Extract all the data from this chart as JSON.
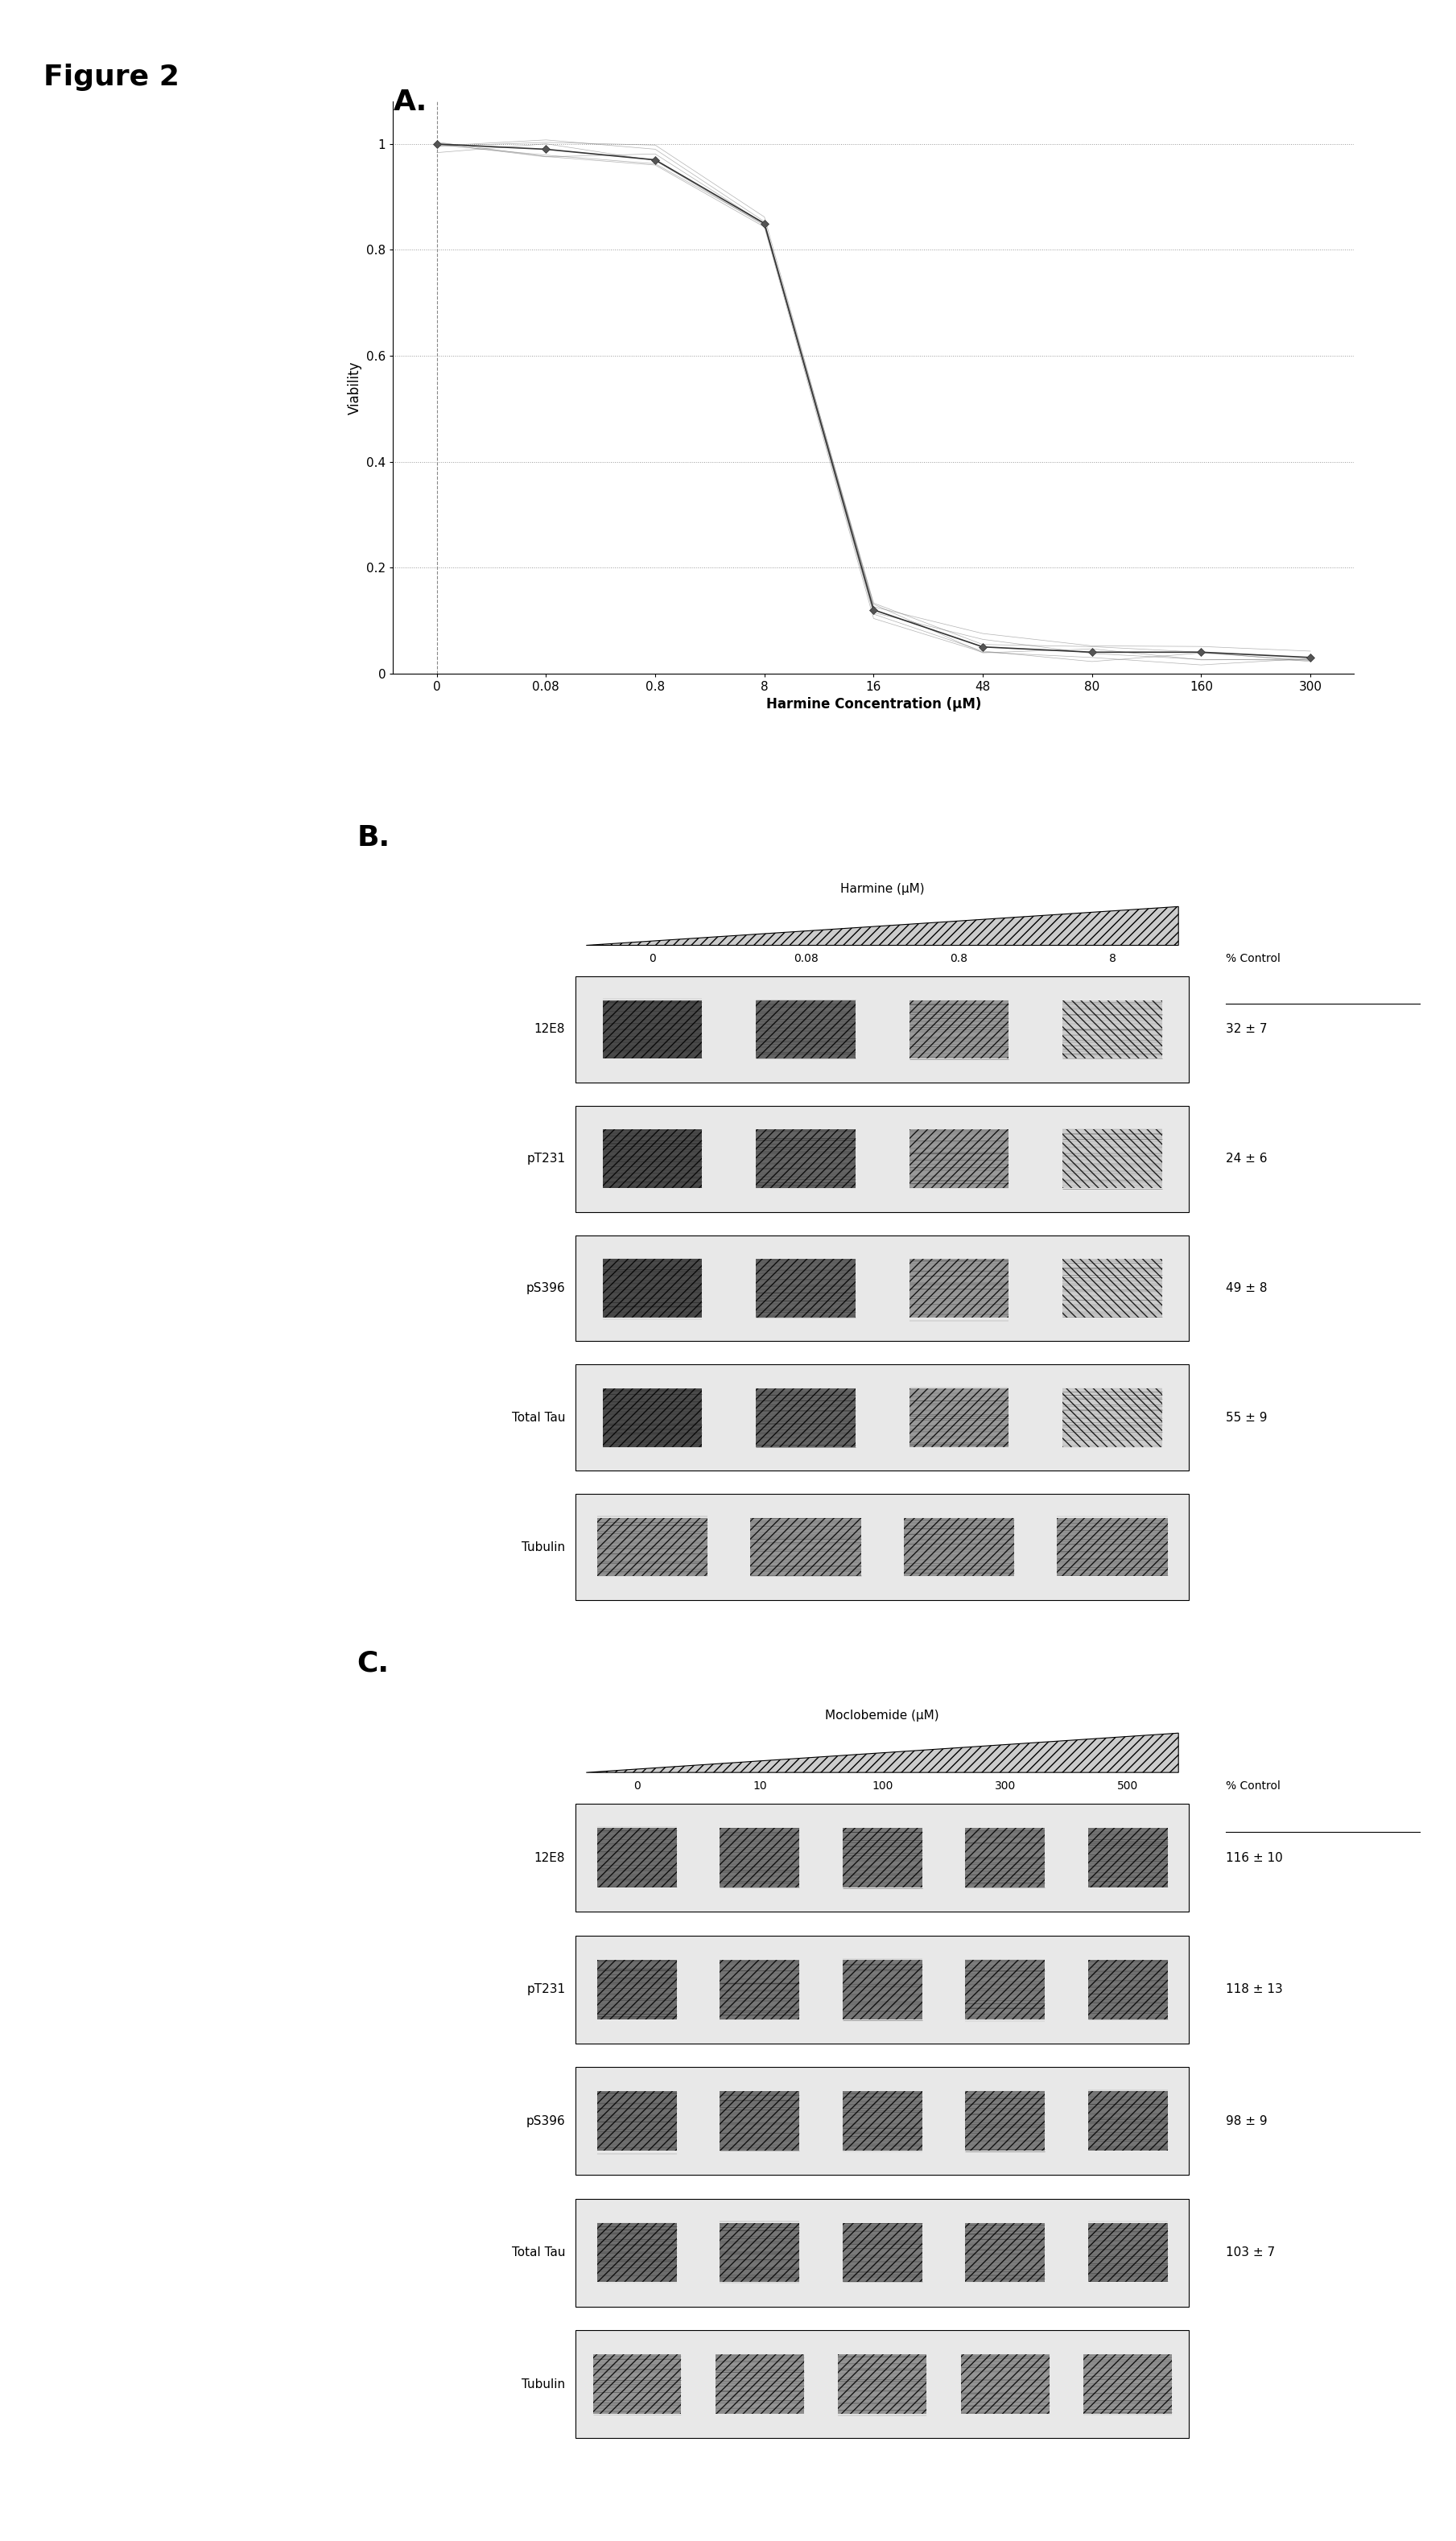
{
  "figure_label": "Figure 2",
  "panel_a": {
    "label": "A.",
    "x_values": [
      0,
      0.08,
      0.8,
      8,
      16,
      48,
      80,
      160,
      300
    ],
    "y_values": [
      1.0,
      0.99,
      0.97,
      0.85,
      0.12,
      0.05,
      0.04,
      0.04,
      0.03
    ],
    "x_tick_labels": [
      "0",
      "0.08",
      "0.8",
      "8",
      "16",
      "48",
      "80",
      "160",
      "300"
    ],
    "y_tick_labels": [
      "0",
      "0.2",
      "0.4",
      "0.6",
      "0.8",
      "1"
    ],
    "xlabel": "Harmine Concentration (μM)",
    "ylabel": "Viability",
    "ylim": [
      0,
      1.08
    ],
    "marker": "D",
    "line_color": "#333333",
    "marker_color": "#555555",
    "grid_color": "#999999"
  },
  "panel_b": {
    "label": "B.",
    "drug_label": "Harmine (μM)",
    "concentrations": [
      "0",
      "0.08",
      "0.8",
      "8"
    ],
    "rows": [
      "12E8",
      "pT231",
      "pS396",
      "Total Tau",
      "Tubulin"
    ],
    "percent_control": [
      "32 ± 7",
      "24 ± 6",
      "49 ± 8",
      "55 ± 9",
      ""
    ],
    "percent_control_label": "% Control",
    "n_lanes": 4
  },
  "panel_c": {
    "label": "C.",
    "drug_label": "Moclobemide (μM)",
    "concentrations": [
      "0",
      "10",
      "100",
      "300",
      "500"
    ],
    "rows": [
      "12E8",
      "pT231",
      "pS396",
      "Total Tau",
      "Tubulin"
    ],
    "percent_control": [
      "116 ± 10",
      "118 ± 13",
      "98 ± 9",
      "103 ± 7",
      ""
    ],
    "percent_control_label": "% Control",
    "n_lanes": 5
  },
  "bg_color": "#ffffff",
  "text_color": "#000000"
}
